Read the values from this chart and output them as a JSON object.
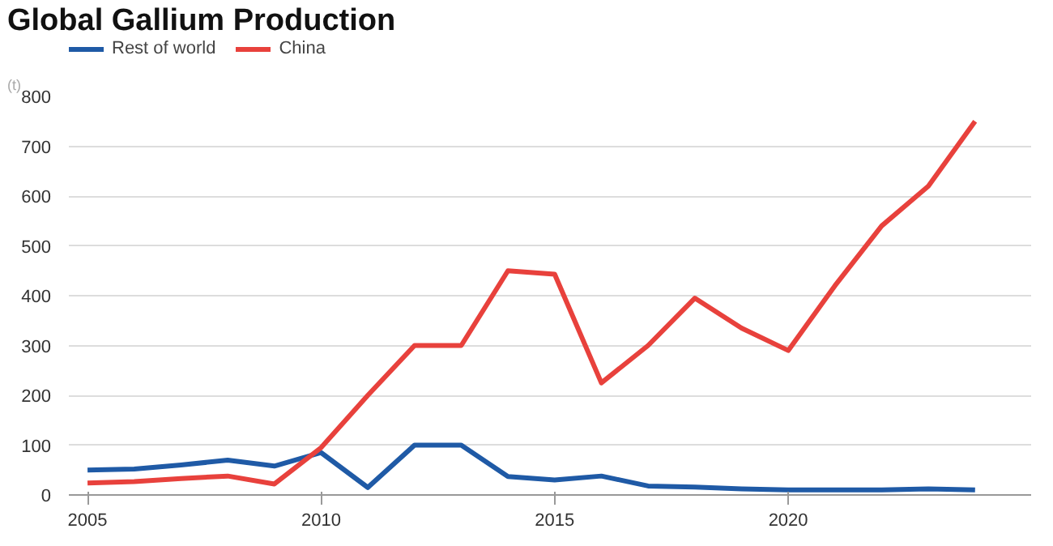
{
  "chart_data": {
    "type": "line",
    "title": "Global Gallium Production",
    "ylabel": "(t)",
    "x": [
      2005,
      2006,
      2007,
      2008,
      2009,
      2010,
      2011,
      2012,
      2013,
      2014,
      2015,
      2016,
      2017,
      2018,
      2019,
      2020,
      2021,
      2022,
      2023,
      2024
    ],
    "series": [
      {
        "name": "Rest of world",
        "color": "#1f5aa6",
        "values": [
          50,
          52,
          60,
          70,
          58,
          85,
          15,
          100,
          100,
          37,
          30,
          38,
          18,
          16,
          12,
          10,
          10,
          10,
          12,
          10
        ]
      },
      {
        "name": "China",
        "color": "#e8413c",
        "values": [
          24,
          27,
          33,
          38,
          22,
          95,
          200,
          300,
          300,
          450,
          443,
          225,
          300,
          395,
          335,
          290,
          420,
          540,
          620,
          750
        ]
      }
    ],
    "xlim": [
      2004.6,
      2025.2
    ],
    "ylim": [
      0,
      800
    ],
    "xticks": [
      2005,
      2010,
      2015,
      2020
    ],
    "yticks": [
      0,
      100,
      200,
      300,
      400,
      500,
      600,
      700,
      800
    ],
    "grid": "y",
    "legend": "top left",
    "marker": "none",
    "line_style": "solid"
  }
}
